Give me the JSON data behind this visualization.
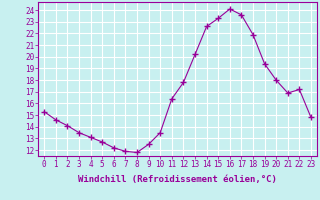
{
  "x": [
    0,
    1,
    2,
    3,
    4,
    5,
    6,
    7,
    8,
    9,
    10,
    11,
    12,
    13,
    14,
    15,
    16,
    17,
    18,
    19,
    20,
    21,
    22,
    23
  ],
  "y": [
    15.3,
    14.6,
    14.1,
    13.5,
    13.1,
    12.7,
    12.2,
    11.9,
    11.8,
    12.5,
    13.5,
    16.4,
    17.8,
    20.2,
    22.6,
    23.3,
    24.1,
    23.6,
    21.9,
    19.4,
    18.0,
    16.9,
    17.2,
    14.8
  ],
  "line_color": "#990099",
  "marker": "+",
  "marker_size": 4,
  "xlabel": "Windchill (Refroidissement éolien,°C)",
  "xlabel_color": "#990099",
  "xlim": [
    -0.5,
    23.5
  ],
  "ylim": [
    11.5,
    24.7
  ],
  "yticks": [
    12,
    13,
    14,
    15,
    16,
    17,
    18,
    19,
    20,
    21,
    22,
    23,
    24
  ],
  "xticks": [
    0,
    1,
    2,
    3,
    4,
    5,
    6,
    7,
    8,
    9,
    10,
    11,
    12,
    13,
    14,
    15,
    16,
    17,
    18,
    19,
    20,
    21,
    22,
    23
  ],
  "bg_color": "#c8f0f0",
  "grid_color": "#ffffff",
  "tick_color": "#990099",
  "axis_color": "#990099",
  "tick_fontsize": 5.5,
  "xlabel_fontsize": 6.5,
  "marker_color": "#990099"
}
